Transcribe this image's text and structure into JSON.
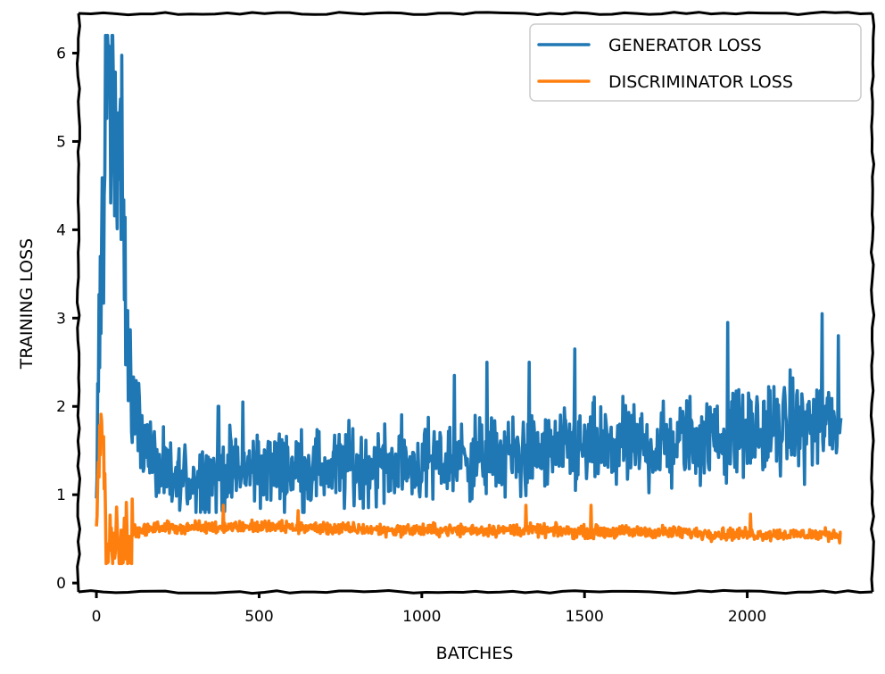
{
  "chart_data": {
    "type": "line",
    "xlabel": "BATCHES",
    "ylabel": "TRAINING LOSS",
    "xlim": [
      -55,
      2385
    ],
    "ylim": [
      -0.1,
      6.45
    ],
    "x_ticks": [
      0,
      500,
      1000,
      1500,
      2000
    ],
    "y_ticks": [
      0,
      1,
      2,
      3,
      4,
      5,
      6
    ],
    "legend_position": "top-right",
    "grid": false,
    "n_batches": 2290,
    "series": [
      {
        "name": "GENERATOR LOSS",
        "color": "#1f77b4",
        "x": [
          0,
          10,
          20,
          30,
          40,
          50,
          60,
          70,
          80,
          90,
          100,
          120,
          150,
          200,
          250,
          300,
          400,
          500,
          600,
          700,
          800,
          900,
          1000,
          1100,
          1200,
          1300,
          1400,
          1500,
          1600,
          1700,
          1800,
          1900,
          2000,
          2100,
          2200,
          2290
        ],
        "y": [
          1.0,
          2.5,
          4.0,
          6.1,
          5.2,
          6.2,
          4.3,
          5.4,
          5.0,
          3.2,
          2.3,
          2.0,
          1.6,
          1.2,
          1.15,
          1.2,
          1.25,
          1.3,
          1.3,
          1.3,
          1.32,
          1.35,
          1.35,
          1.4,
          1.42,
          1.45,
          1.48,
          1.5,
          1.55,
          1.55,
          1.6,
          1.65,
          1.7,
          1.75,
          1.8,
          1.85
        ],
        "peaks": [
          [
            375,
            2.0
          ],
          [
            450,
            2.05
          ],
          [
            1100,
            2.35
          ],
          [
            1200,
            2.5
          ],
          [
            1330,
            2.5
          ],
          [
            1470,
            2.65
          ],
          [
            1940,
            2.95
          ],
          [
            2230,
            3.05
          ],
          [
            2280,
            2.8
          ]
        ]
      },
      {
        "name": "DISCRIMINATOR LOSS",
        "color": "#ff7f0e",
        "x": [
          0,
          10,
          20,
          30,
          40,
          50,
          60,
          70,
          80,
          90,
          100,
          120,
          150,
          200,
          300,
          500,
          700,
          900,
          1100,
          1300,
          1500,
          1700,
          1900,
          2100,
          2290
        ],
        "y": [
          0.75,
          1.5,
          1.95,
          0.3,
          0.55,
          0.3,
          0.7,
          0.4,
          0.55,
          0.5,
          0.55,
          0.58,
          0.6,
          0.63,
          0.63,
          0.64,
          0.62,
          0.6,
          0.6,
          0.6,
          0.58,
          0.58,
          0.56,
          0.55,
          0.55
        ],
        "peaks": [
          [
            110,
            0.95
          ],
          [
            390,
            0.88
          ],
          [
            620,
            0.82
          ],
          [
            1320,
            0.88
          ],
          [
            1520,
            0.88
          ],
          [
            2010,
            0.78
          ]
        ]
      }
    ]
  }
}
